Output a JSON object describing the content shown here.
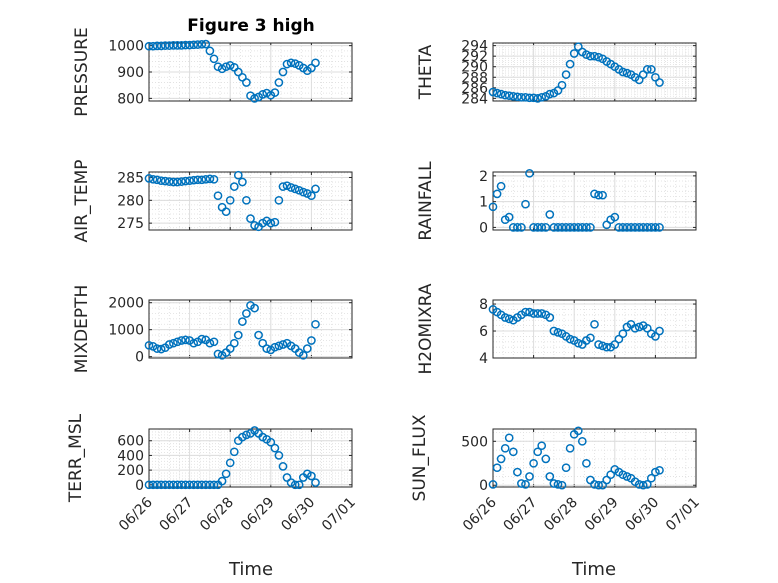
{
  "figure": {
    "title": "Figure 3 high",
    "xlabel": "Time"
  },
  "colors": {
    "marker": "#0072bd",
    "axis": "#262626",
    "grid": "#dcdcdc"
  },
  "chart_data": [
    {
      "type": "scatter",
      "id": "pressure",
      "ylabel": "PRESSURE",
      "ylim": [
        790,
        1010
      ],
      "yticks": [
        800,
        900,
        1000
      ],
      "x": [
        0.0,
        0.1,
        0.2,
        0.3,
        0.4,
        0.5,
        0.6,
        0.7,
        0.8,
        0.9,
        1.0,
        1.1,
        1.2,
        1.3,
        1.4,
        1.5,
        1.6,
        1.7,
        1.8,
        1.9,
        2.0,
        2.1,
        2.2,
        2.3,
        2.4,
        2.5,
        2.6,
        2.7,
        2.8,
        2.9,
        3.0,
        3.1,
        3.2,
        3.3,
        3.4,
        3.5,
        3.6,
        3.7,
        3.8,
        3.9,
        4.0,
        4.1
      ],
      "y": [
        998,
        998,
        999,
        999,
        1000,
        1000,
        1001,
        1001,
        1001,
        1002,
        1002,
        1003,
        1004,
        1005,
        1006,
        980,
        950,
        920,
        912,
        920,
        925,
        918,
        900,
        880,
        860,
        810,
        800,
        805,
        815,
        820,
        812,
        822,
        860,
        900,
        930,
        935,
        932,
        925,
        915,
        905,
        915,
        935
      ]
    },
    {
      "type": "scatter",
      "id": "theta",
      "ylabel": "THETA",
      "ylim": [
        283.5,
        294.5
      ],
      "yticks": [
        284,
        286,
        288,
        290,
        292,
        294
      ],
      "x": [
        0.0,
        0.1,
        0.2,
        0.3,
        0.4,
        0.5,
        0.6,
        0.7,
        0.8,
        0.9,
        1.0,
        1.1,
        1.2,
        1.3,
        1.4,
        1.5,
        1.6,
        1.7,
        1.8,
        1.9,
        2.0,
        2.1,
        2.2,
        2.3,
        2.4,
        2.5,
        2.6,
        2.7,
        2.8,
        2.9,
        3.0,
        3.1,
        3.2,
        3.3,
        3.4,
        3.5,
        3.6,
        3.7,
        3.8,
        3.9,
        4.0,
        4.1
      ],
      "y": [
        285.2,
        285.0,
        284.8,
        284.6,
        284.5,
        284.4,
        284.3,
        284.2,
        284.2,
        284.1,
        284.1,
        284.0,
        284.2,
        284.4,
        284.8,
        285.0,
        285.5,
        286.5,
        288.5,
        290.5,
        292.5,
        293.8,
        292.8,
        292.3,
        292.0,
        292.0,
        291.8,
        291.5,
        291.0,
        290.5,
        290.0,
        289.5,
        289.0,
        288.8,
        288.5,
        288.0,
        287.5,
        288.5,
        289.5,
        289.5,
        288.0,
        287.0
      ]
    },
    {
      "type": "scatter",
      "id": "air_temp",
      "ylabel": "AIR_TEMP",
      "ylim": [
        273.5,
        286.2
      ],
      "yticks": [
        275,
        280,
        285
      ],
      "x": [
        0.0,
        0.1,
        0.2,
        0.3,
        0.4,
        0.5,
        0.6,
        0.7,
        0.8,
        0.9,
        1.0,
        1.1,
        1.2,
        1.3,
        1.4,
        1.5,
        1.6,
        1.7,
        1.8,
        1.9,
        2.0,
        2.1,
        2.2,
        2.3,
        2.4,
        2.5,
        2.6,
        2.7,
        2.8,
        2.9,
        3.0,
        3.1,
        3.2,
        3.3,
        3.4,
        3.5,
        3.6,
        3.7,
        3.8,
        3.9,
        4.0,
        4.1
      ],
      "y": [
        284.8,
        284.6,
        284.5,
        284.3,
        284.2,
        284.1,
        284.0,
        284.0,
        284.1,
        284.2,
        284.3,
        284.4,
        284.5,
        284.5,
        284.6,
        284.7,
        284.6,
        281.0,
        278.5,
        277.5,
        280.0,
        283.0,
        285.5,
        284.0,
        280.0,
        276.0,
        274.5,
        274.2,
        275.0,
        275.5,
        275.0,
        275.2,
        280.0,
        283.0,
        283.2,
        282.8,
        282.5,
        282.2,
        281.8,
        281.5,
        281.0,
        282.5
      ]
    },
    {
      "type": "scatter",
      "id": "rainfall",
      "ylabel": "RAINFALL",
      "ylim": [
        -0.1,
        2.15
      ],
      "yticks": [
        0,
        1,
        2
      ],
      "x": [
        0.0,
        0.1,
        0.2,
        0.3,
        0.4,
        0.5,
        0.6,
        0.7,
        0.8,
        0.9,
        1.0,
        1.1,
        1.2,
        1.3,
        1.4,
        1.5,
        1.6,
        1.7,
        1.8,
        1.9,
        2.0,
        2.1,
        2.2,
        2.3,
        2.4,
        2.5,
        2.6,
        2.7,
        2.8,
        2.9,
        3.0,
        3.1,
        3.2,
        3.3,
        3.4,
        3.5,
        3.6,
        3.7,
        3.8,
        3.9,
        4.0,
        4.1
      ],
      "y": [
        0.8,
        1.3,
        1.6,
        0.3,
        0.4,
        0.0,
        0.0,
        0.0,
        0.9,
        2.1,
        0.0,
        0.0,
        0.0,
        0.0,
        0.5,
        0.0,
        0.0,
        0.0,
        0.0,
        0.0,
        0.0,
        0.0,
        0.0,
        0.0,
        0.0,
        1.3,
        1.25,
        1.25,
        0.1,
        0.3,
        0.4,
        0.0,
        0.0,
        0.0,
        0.0,
        0.0,
        0.0,
        0.0,
        0.0,
        0.0,
        0.0,
        0.0
      ]
    },
    {
      "type": "scatter",
      "id": "mixdepth",
      "ylabel": "MIXDEPTH",
      "ylim": [
        -50,
        2100
      ],
      "yticks": [
        0,
        1000,
        2000
      ],
      "x": [
        0.0,
        0.1,
        0.2,
        0.3,
        0.4,
        0.5,
        0.6,
        0.7,
        0.8,
        0.9,
        1.0,
        1.1,
        1.2,
        1.3,
        1.4,
        1.5,
        1.6,
        1.7,
        1.8,
        1.9,
        2.0,
        2.1,
        2.2,
        2.3,
        2.4,
        2.5,
        2.6,
        2.7,
        2.8,
        2.9,
        3.0,
        3.1,
        3.2,
        3.3,
        3.4,
        3.5,
        3.6,
        3.7,
        3.8,
        3.9,
        4.0,
        4.1
      ],
      "y": [
        420,
        380,
        300,
        280,
        330,
        450,
        500,
        550,
        600,
        620,
        600,
        500,
        550,
        650,
        620,
        500,
        550,
        100,
        50,
        150,
        300,
        500,
        800,
        1300,
        1600,
        1900,
        1800,
        800,
        500,
        300,
        250,
        350,
        400,
        450,
        500,
        400,
        300,
        150,
        50,
        300,
        600,
        1200
      ]
    },
    {
      "type": "scatter",
      "id": "h2omixra",
      "ylabel": "H2OMIXRA",
      "ylim": [
        4,
        8.3
      ],
      "yticks": [
        4,
        6,
        8
      ],
      "x": [
        0.0,
        0.1,
        0.2,
        0.3,
        0.4,
        0.5,
        0.6,
        0.7,
        0.8,
        0.9,
        1.0,
        1.1,
        1.2,
        1.3,
        1.4,
        1.5,
        1.6,
        1.7,
        1.8,
        1.9,
        2.0,
        2.1,
        2.2,
        2.3,
        2.4,
        2.5,
        2.6,
        2.7,
        2.8,
        2.9,
        3.0,
        3.1,
        3.2,
        3.3,
        3.4,
        3.5,
        3.6,
        3.7,
        3.8,
        3.9,
        4.0,
        4.1
      ],
      "y": [
        7.6,
        7.4,
        7.2,
        7.0,
        6.9,
        6.8,
        7.0,
        7.2,
        7.4,
        7.4,
        7.3,
        7.3,
        7.3,
        7.2,
        7.0,
        6.0,
        5.9,
        5.8,
        5.6,
        5.4,
        5.3,
        5.1,
        5.0,
        5.3,
        5.5,
        6.5,
        5.0,
        4.9,
        4.8,
        4.8,
        5.0,
        5.4,
        5.8,
        6.3,
        6.5,
        6.2,
        6.3,
        6.4,
        6.2,
        5.8,
        5.6,
        6.0
      ]
    },
    {
      "type": "scatter",
      "id": "terr_msl",
      "ylabel": "TERR_MSL",
      "ylim": [
        -30,
        760
      ],
      "yticks": [
        0,
        200,
        400,
        600
      ],
      "x": [
        0.0,
        0.1,
        0.2,
        0.3,
        0.4,
        0.5,
        0.6,
        0.7,
        0.8,
        0.9,
        1.0,
        1.1,
        1.2,
        1.3,
        1.4,
        1.5,
        1.6,
        1.7,
        1.8,
        1.9,
        2.0,
        2.1,
        2.2,
        2.3,
        2.4,
        2.5,
        2.6,
        2.7,
        2.8,
        2.9,
        3.0,
        3.1,
        3.2,
        3.3,
        3.4,
        3.5,
        3.6,
        3.7,
        3.8,
        3.9,
        4.0,
        4.1
      ],
      "y": [
        0,
        0,
        0,
        0,
        0,
        0,
        0,
        0,
        0,
        0,
        0,
        0,
        0,
        0,
        0,
        0,
        0,
        0,
        50,
        150,
        300,
        450,
        600,
        650,
        680,
        700,
        740,
        700,
        650,
        620,
        580,
        500,
        400,
        250,
        100,
        30,
        0,
        0,
        100,
        150,
        120,
        30
      ]
    },
    {
      "type": "scatter",
      "id": "sun_flux",
      "ylabel": "SUN_FLUX",
      "ylim": [
        -20,
        640
      ],
      "yticks": [
        0,
        500
      ],
      "x": [
        0.0,
        0.1,
        0.2,
        0.3,
        0.4,
        0.5,
        0.6,
        0.7,
        0.8,
        0.9,
        1.0,
        1.1,
        1.2,
        1.3,
        1.4,
        1.5,
        1.6,
        1.7,
        1.8,
        1.9,
        2.0,
        2.1,
        2.2,
        2.3,
        2.4,
        2.5,
        2.6,
        2.7,
        2.8,
        2.9,
        3.0,
        3.1,
        3.2,
        3.3,
        3.4,
        3.5,
        3.6,
        3.7,
        3.8,
        3.9,
        4.0,
        4.1
      ],
      "y": [
        10,
        200,
        300,
        420,
        540,
        380,
        150,
        20,
        10,
        100,
        250,
        380,
        450,
        300,
        100,
        20,
        10,
        0,
        200,
        420,
        580,
        620,
        500,
        250,
        60,
        10,
        0,
        0,
        60,
        120,
        180,
        150,
        120,
        100,
        80,
        40,
        10,
        0,
        10,
        80,
        150,
        170
      ]
    }
  ],
  "xaxis": {
    "xlim": [
      0,
      5
    ],
    "ticks": [
      0,
      1,
      2,
      3,
      4,
      5
    ],
    "tick_labels": [
      "06/26",
      "06/27",
      "06/28",
      "06/29",
      "06/30",
      "07/01"
    ]
  }
}
